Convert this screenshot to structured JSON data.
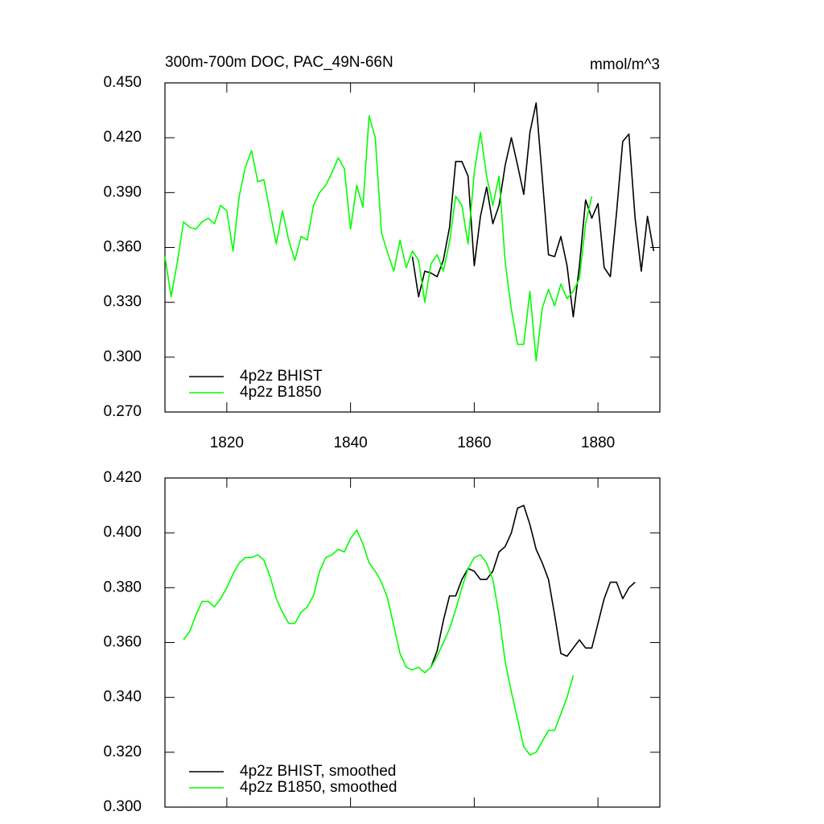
{
  "chart_data": [
    {
      "type": "line",
      "title": "300m-700m DOC, PAC_49N-66N",
      "units": "mmol/m^3",
      "xlim": [
        1810,
        1890
      ],
      "xticks": [
        1820,
        1840,
        1860,
        1880
      ],
      "ylim": [
        0.27,
        0.45
      ],
      "yticks": [
        {
          "value": 0.27,
          "label": "0.270"
        },
        {
          "value": 0.3,
          "label": "0.300"
        },
        {
          "value": 0.33,
          "label": "0.330"
        },
        {
          "value": 0.36,
          "label": "0.360"
        },
        {
          "value": 0.39,
          "label": "0.390"
        },
        {
          "value": 0.42,
          "label": "0.420"
        },
        {
          "value": 0.45,
          "label": "0.450"
        }
      ],
      "series": [
        {
          "name": "4p2z BHIST",
          "color": "#000000",
          "x": [
            1850,
            1851,
            1852,
            1853,
            1854,
            1855,
            1856,
            1857,
            1858,
            1859,
            1860,
            1861,
            1862,
            1863,
            1864,
            1865,
            1866,
            1867,
            1868,
            1869,
            1870,
            1871,
            1872,
            1873,
            1874,
            1875,
            1876,
            1877,
            1878,
            1879,
            1880,
            1881,
            1882,
            1883,
            1884,
            1885,
            1886,
            1887,
            1888,
            1889
          ],
          "values": [
            0.355,
            0.333,
            0.347,
            0.346,
            0.344,
            0.353,
            0.371,
            0.407,
            0.407,
            0.399,
            0.35,
            0.377,
            0.393,
            0.373,
            0.383,
            0.405,
            0.42,
            0.405,
            0.389,
            0.423,
            0.439,
            0.398,
            0.356,
            0.355,
            0.366,
            0.35,
            0.322,
            0.35,
            0.386,
            0.376,
            0.384,
            0.349,
            0.344,
            0.379,
            0.418,
            0.422,
            0.376,
            0.347,
            0.377,
            0.358
          ]
        },
        {
          "name": "4p2z B1850",
          "color": "#00ff00",
          "x": [
            1810,
            1811,
            1812,
            1813,
            1814,
            1815,
            1816,
            1817,
            1818,
            1819,
            1820,
            1821,
            1822,
            1823,
            1824,
            1825,
            1826,
            1827,
            1828,
            1829,
            1830,
            1831,
            1832,
            1833,
            1834,
            1835,
            1836,
            1837,
            1838,
            1839,
            1840,
            1841,
            1842,
            1843,
            1844,
            1845,
            1846,
            1847,
            1848,
            1849,
            1850,
            1851,
            1852,
            1853,
            1854,
            1855,
            1856,
            1857,
            1858,
            1859,
            1860,
            1861,
            1862,
            1863,
            1864,
            1865,
            1866,
            1867,
            1868,
            1869,
            1870,
            1871,
            1872,
            1873,
            1874,
            1875,
            1876,
            1877,
            1878,
            1879
          ],
          "values": [
            0.355,
            0.333,
            0.352,
            0.374,
            0.371,
            0.37,
            0.374,
            0.376,
            0.373,
            0.383,
            0.38,
            0.358,
            0.388,
            0.404,
            0.413,
            0.396,
            0.397,
            0.379,
            0.362,
            0.38,
            0.364,
            0.353,
            0.366,
            0.364,
            0.383,
            0.39,
            0.394,
            0.401,
            0.409,
            0.403,
            0.37,
            0.394,
            0.382,
            0.432,
            0.42,
            0.368,
            0.357,
            0.347,
            0.364,
            0.349,
            0.358,
            0.353,
            0.33,
            0.351,
            0.356,
            0.347,
            0.363,
            0.388,
            0.383,
            0.362,
            0.401,
            0.423,
            0.399,
            0.383,
            0.399,
            0.352,
            0.326,
            0.307,
            0.307,
            0.336,
            0.298,
            0.327,
            0.337,
            0.328,
            0.34,
            0.332,
            0.336,
            0.343,
            0.373,
            0.388
          ]
        }
      ]
    },
    {
      "type": "line",
      "xlim": [
        1810,
        1890
      ],
      "xticks": [
        1820,
        1840,
        1860,
        1880
      ],
      "ylim": [
        0.3,
        0.42
      ],
      "yticks": [
        {
          "value": 0.3,
          "label": "0.300"
        },
        {
          "value": 0.32,
          "label": "0.320"
        },
        {
          "value": 0.34,
          "label": "0.340"
        },
        {
          "value": 0.36,
          "label": "0.360"
        },
        {
          "value": 0.38,
          "label": "0.380"
        },
        {
          "value": 0.4,
          "label": "0.400"
        },
        {
          "value": 0.42,
          "label": "0.420"
        }
      ],
      "series": [
        {
          "name": "4p2z BHIST, smoothed",
          "color": "#000000",
          "x": [
            1853,
            1854,
            1855,
            1856,
            1857,
            1858,
            1859,
            1860,
            1861,
            1862,
            1863,
            1864,
            1865,
            1866,
            1867,
            1868,
            1869,
            1870,
            1871,
            1872,
            1873,
            1874,
            1875,
            1876,
            1877,
            1878,
            1879,
            1880,
            1881,
            1882,
            1883,
            1884,
            1885,
            1886
          ],
          "values": [
            0.351,
            0.357,
            0.368,
            0.377,
            0.377,
            0.383,
            0.387,
            0.386,
            0.383,
            0.383,
            0.386,
            0.393,
            0.395,
            0.4,
            0.409,
            0.41,
            0.403,
            0.394,
            0.389,
            0.383,
            0.37,
            0.356,
            0.355,
            0.358,
            0.361,
            0.358,
            0.358,
            0.367,
            0.376,
            0.382,
            0.382,
            0.376,
            0.38,
            0.382
          ]
        },
        {
          "name": "4p2z B1850, smoothed",
          "color": "#00ff00",
          "x": [
            1813,
            1814,
            1815,
            1816,
            1817,
            1818,
            1819,
            1820,
            1821,
            1822,
            1823,
            1824,
            1825,
            1826,
            1827,
            1828,
            1829,
            1830,
            1831,
            1832,
            1833,
            1834,
            1835,
            1836,
            1837,
            1838,
            1839,
            1840,
            1841,
            1842,
            1843,
            1844,
            1845,
            1846,
            1847,
            1848,
            1849,
            1850,
            1851,
            1852,
            1853,
            1854,
            1855,
            1856,
            1857,
            1858,
            1859,
            1860,
            1861,
            1862,
            1863,
            1864,
            1865,
            1866,
            1867,
            1868,
            1869,
            1870,
            1871,
            1872,
            1873,
            1874,
            1875,
            1876
          ],
          "values": [
            0.361,
            0.364,
            0.37,
            0.375,
            0.375,
            0.373,
            0.376,
            0.38,
            0.385,
            0.389,
            0.391,
            0.391,
            0.392,
            0.39,
            0.384,
            0.376,
            0.371,
            0.367,
            0.367,
            0.371,
            0.373,
            0.377,
            0.386,
            0.391,
            0.392,
            0.394,
            0.393,
            0.398,
            0.401,
            0.396,
            0.389,
            0.386,
            0.382,
            0.376,
            0.366,
            0.356,
            0.351,
            0.35,
            0.351,
            0.349,
            0.351,
            0.355,
            0.36,
            0.365,
            0.372,
            0.38,
            0.387,
            0.391,
            0.392,
            0.389,
            0.383,
            0.37,
            0.353,
            0.342,
            0.332,
            0.322,
            0.319,
            0.32,
            0.324,
            0.328,
            0.328,
            0.334,
            0.34,
            0.348
          ]
        }
      ]
    }
  ]
}
